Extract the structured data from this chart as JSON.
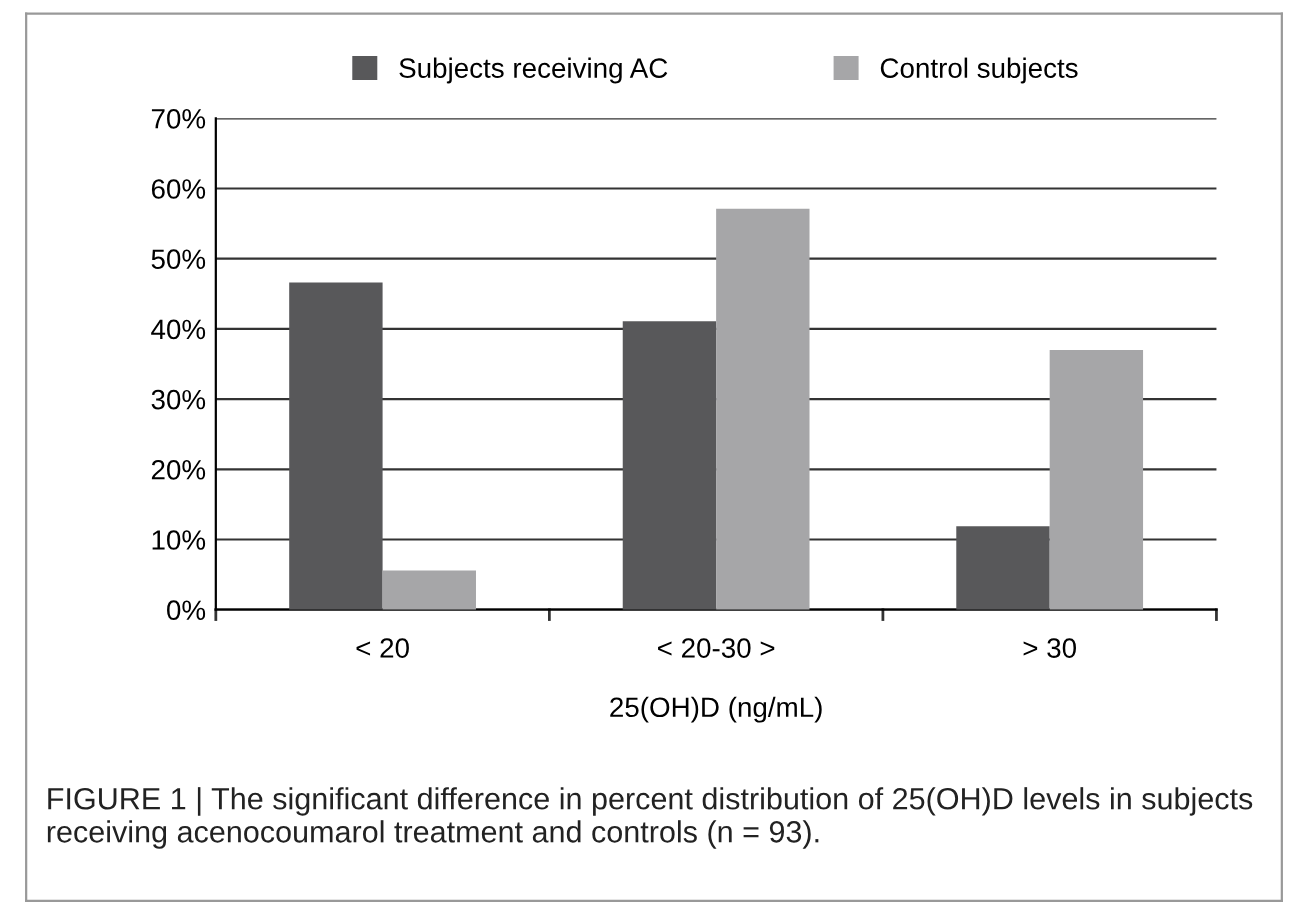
{
  "chart_data": {
    "type": "bar",
    "xlabel": "25(OH)D (ng/mL)",
    "categories": [
      "< 20",
      "< 20-30 >",
      "> 30"
    ],
    "series": [
      {
        "name": "Subjects receiving AC",
        "color": "#58585a",
        "values": [
          46.6,
          41.1,
          11.9
        ]
      },
      {
        "name": "Control subjects",
        "color": "#a6a6a8",
        "values": [
          5.6,
          57.1,
          37.0
        ]
      }
    ],
    "ylim": [
      0,
      70
    ],
    "yticks": [
      {
        "value": 0,
        "label": "0%"
      },
      {
        "value": 10,
        "label": "10%"
      },
      {
        "value": 20,
        "label": "20%"
      },
      {
        "value": 30,
        "label": "30%"
      },
      {
        "value": 40,
        "label": "40%"
      },
      {
        "value": 50,
        "label": "50%"
      },
      {
        "value": 60,
        "label": "60%"
      },
      {
        "value": 70,
        "label": "70%"
      }
    ],
    "grid": "y",
    "legend": "top",
    "annotations": [
      "FIGURE 1 | The significant difference in percent distribution of 25(OH)D levels in subjects receiving acenocoumarol treatment and controls (n = 93)."
    ]
  }
}
